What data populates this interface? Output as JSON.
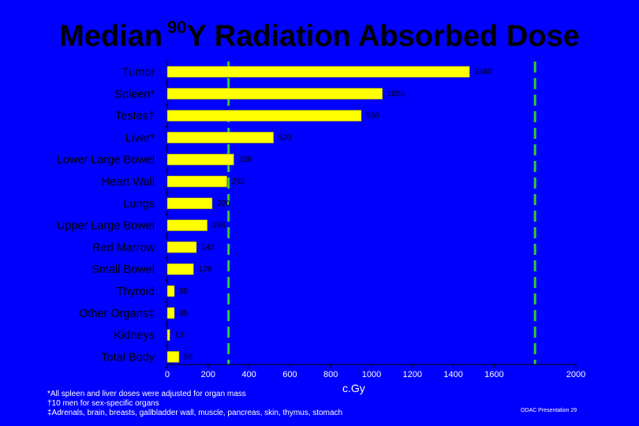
{
  "title": {
    "prefix": "Median",
    "superscript": "90",
    "suffix": "Y Radiation Absorbed Dose"
  },
  "chart_data": {
    "type": "bar",
    "orientation": "horizontal",
    "categories": [
      "Tumor",
      "Spleen*",
      "Testes†",
      "Liver*",
      "Lower Large Bowel",
      "Heart Wall",
      "Lungs",
      "Upper Large Bowel",
      "Red Marrow",
      "Small Bowel",
      "Thyroid",
      "Other Organs‡",
      "Kidneys",
      "Total Body"
    ],
    "values": [
      1480,
      1053,
      950,
      520,
      326,
      292,
      220,
      196,
      143,
      129,
      35,
      35,
      13,
      58
    ],
    "value_labels": [
      "1480",
      "1053",
      "950",
      "520",
      "326",
      "292",
      "220",
      "196",
      "143",
      "129",
      "35",
      "35",
      "13",
      "58"
    ],
    "xlabel": "c.Gy",
    "xlim": [
      0,
      2000
    ],
    "xticks": [
      0,
      200,
      400,
      600,
      800,
      1000,
      1200,
      1400,
      1600,
      2000
    ],
    "reference_lines": [
      300,
      1800
    ],
    "grid": false,
    "colors": {
      "background": "#0000FF",
      "bar": "#FFFF00",
      "bar_edge": "#808000",
      "reference_line": "#33CC33",
      "text": "#FFFFFF",
      "title": "#000000"
    }
  },
  "footnotes": [
    "*All spleen and liver doses were adjusted for organ mass",
    "†10 men for sex-specific organs",
    "‡Adrenals, brain, breasts, gallbladder wall, muscle, pancreas, skin, thymus, stomach"
  ],
  "footer_right": "ODAC Presentation 29"
}
